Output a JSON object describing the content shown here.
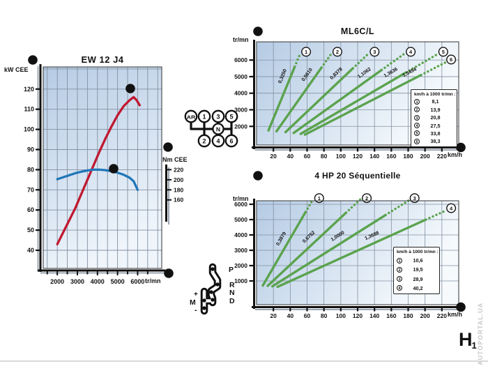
{
  "page": {
    "logo_text": "H",
    "logo_sub": "1",
    "watermark": "AUTOPORTAL.UA"
  },
  "colors": {
    "gear_line_green": "#5ba34e",
    "power_red": "#c01830",
    "torque_blue": "#2077b8",
    "plot_gradient_start": "#b5cbe4",
    "plot_gradient_end": "#f6fafd",
    "grid": "#8391a2"
  },
  "labels": {
    "power_axis": "kW CEE",
    "torque_axis": "Nm CEE",
    "rpm_axis": "tr/mn",
    "speed_axis": "km/h"
  },
  "markers": {
    "power_axis": "b",
    "power_curve": "d",
    "torque_curve": "e",
    "torque_axis": "c",
    "engine_rpm_axis": "a",
    "manual_chart_title": "a",
    "manual_chart_speed_axis": "f",
    "auto_chart_title": "a",
    "auto_chart_speed_axis": "f"
  },
  "manual_shifter": {
    "reverse": "AR",
    "neutral": "N",
    "gears": [
      "1",
      "2",
      "3",
      "4",
      "5",
      "6"
    ]
  },
  "auto_selector": {
    "positions": [
      "P",
      "R",
      "N",
      "D"
    ],
    "manual_up": "+",
    "manual_mode": "M",
    "manual_down": "-"
  },
  "chart_data": [
    {
      "id": "engine",
      "type": "line",
      "title": "EW 12 J4",
      "xlabel": "tr/mn",
      "ylabel": "kW CEE",
      "y2label": "Nm CEE",
      "xlim": [
        1300,
        7200
      ],
      "ylim": [
        31,
        131
      ],
      "x_ticks": [
        2000,
        3000,
        4000,
        5000,
        6000
      ],
      "y_ticks": [
        40,
        50,
        60,
        70,
        80,
        90,
        100,
        110,
        120
      ],
      "y2_ticks": [
        160,
        180,
        200,
        220
      ],
      "y2_alignment": "220 Nm aligns with 80 kW, 20 Nm per 5 kW of axis",
      "grid": true,
      "series": [
        {
          "name": "power",
          "unit": "kW",
          "color": "#c01830",
          "points": [
            [
              2000,
              43
            ],
            [
              2300,
              49
            ],
            [
              2600,
              55
            ],
            [
              2900,
              61
            ],
            [
              3200,
              68
            ],
            [
              3500,
              75
            ],
            [
              3800,
              82
            ],
            [
              4100,
              89
            ],
            [
              4400,
              95.5
            ],
            [
              4700,
              101.5
            ],
            [
              5000,
              107
            ],
            [
              5300,
              111.5
            ],
            [
              5600,
              114.5
            ],
            [
              5800,
              116
            ],
            [
              5950,
              114.5
            ],
            [
              6100,
              112
            ]
          ]
        },
        {
          "name": "torque",
          "unit": "Nm",
          "axis": "y2",
          "color": "#2077b8",
          "points": [
            [
              2000,
              201
            ],
            [
              2300,
              205
            ],
            [
              2600,
              209
            ],
            [
              2900,
              213
            ],
            [
              3200,
              216
            ],
            [
              3500,
              218.5
            ],
            [
              3800,
              220
            ],
            [
              4100,
              220
            ],
            [
              4400,
              219
            ],
            [
              4700,
              217
            ],
            [
              5000,
              214
            ],
            [
              5300,
              210
            ],
            [
              5600,
              204
            ],
            [
              5800,
              197
            ],
            [
              6000,
              180
            ]
          ]
        }
      ]
    },
    {
      "id": "ml6cl",
      "type": "line",
      "title": "ML6C/L",
      "xlabel": "km/h",
      "ylabel": "tr/mn",
      "xlim": [
        0,
        240
      ],
      "ylim": [
        875,
        7100
      ],
      "x_ticks": [
        20,
        40,
        60,
        80,
        100,
        120,
        140,
        160,
        180,
        200,
        220
      ],
      "y_ticks": [
        2000,
        3000,
        4000,
        5000,
        6000
      ],
      "grid": true,
      "legend_title": "km/h à 1000 tr/mn :",
      "gears": [
        {
          "num": "1",
          "ratio_label": "0,3250",
          "kmh_at_1000": "8,1",
          "k": 8.1
        },
        {
          "num": "2",
          "ratio_label": "0,5610",
          "kmh_at_1000": "13,9",
          "k": 13.9
        },
        {
          "num": "3",
          "ratio_label": "0,8378",
          "kmh_at_1000": "20,8",
          "k": 20.8
        },
        {
          "num": "4",
          "ratio_label": "1,1062",
          "kmh_at_1000": "27,5",
          "k": 27.5
        },
        {
          "num": "5",
          "ratio_label": "1,3636",
          "kmh_at_1000": "33,8",
          "k": 33.8
        },
        {
          "num": "6",
          "ratio_label": "1,5454",
          "kmh_at_1000": "38,3",
          "k": 38.3
        }
      ]
    },
    {
      "id": "4hp20",
      "type": "line",
      "title": "4 HP 20 Séquentielle",
      "xlabel": "km/h",
      "ylabel": "tr/mn",
      "xlim": [
        0,
        240
      ],
      "ylim": [
        0,
        6500
      ],
      "x_ticks": [
        20,
        40,
        60,
        80,
        100,
        120,
        140,
        160,
        180,
        200,
        220
      ],
      "y_ticks": [
        1000,
        2000,
        3000,
        4000,
        5000,
        6000
      ],
      "grid": true,
      "legend_title": "km/h à 1000 tr/mn :",
      "gears": [
        {
          "num": "1",
          "ratio_label": "0,3879",
          "kmh_at_1000": "10,6",
          "k": 10.6
        },
        {
          "num": "2",
          "ratio_label": "0,6752",
          "kmh_at_1000": "19,5",
          "k": 19.5
        },
        {
          "num": "3",
          "ratio_label": "1,0000",
          "kmh_at_1000": "28,9",
          "k": 28.9
        },
        {
          "num": "4",
          "ratio_label": "1,3688",
          "kmh_at_1000": "40,2",
          "k": 40.2
        }
      ]
    }
  ]
}
